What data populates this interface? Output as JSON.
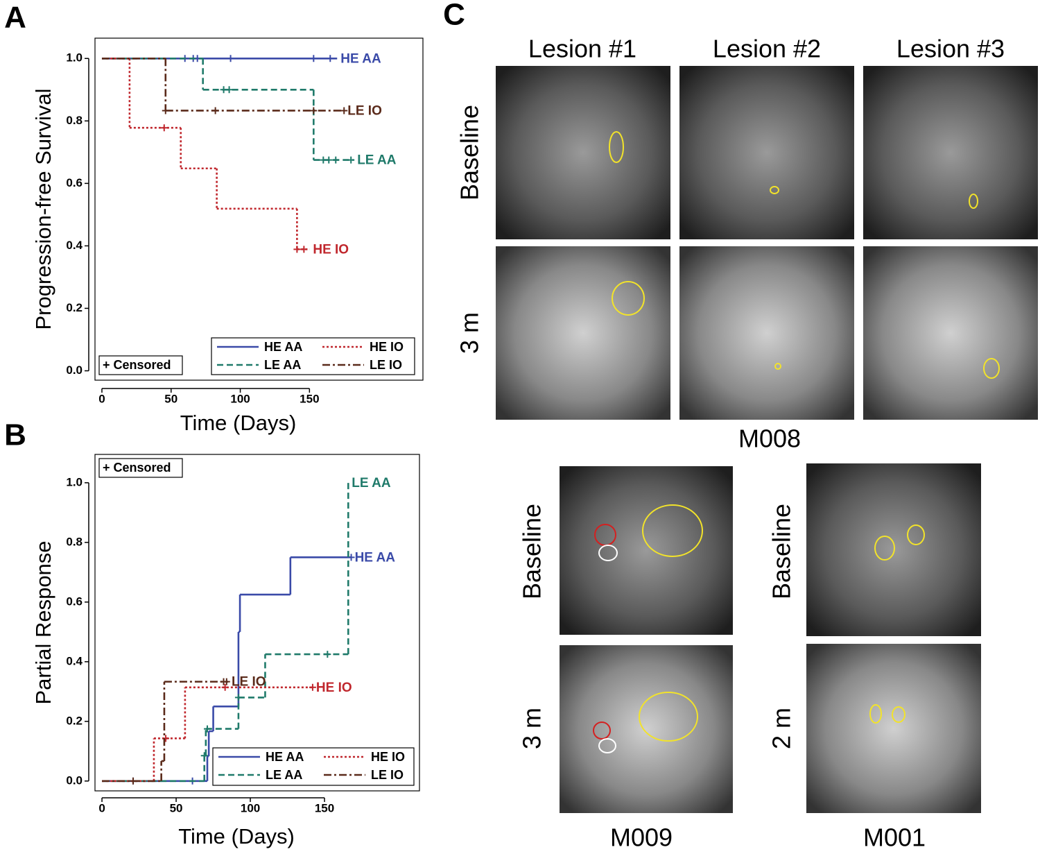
{
  "chart_data": [
    {
      "type": "line",
      "step": true,
      "xlabel": "Time (Days)",
      "ylabel": "Progression-free Survival",
      "xlim": [
        -5,
        232
      ],
      "ylim": [
        -0.03,
        1.065
      ],
      "xticks": [
        0,
        50,
        100,
        150
      ],
      "yticks": [
        {
          "value": 0,
          "label": "0.0"
        },
        {
          "value": 0.2,
          "label": "0.2"
        },
        {
          "value": 0.4,
          "label": "0.4"
        },
        {
          "value": 0.6,
          "label": "0.6"
        },
        {
          "value": 0.8,
          "label": "0.8"
        },
        {
          "value": 1,
          "label": "1.0"
        }
      ],
      "legend_position": "lower right",
      "censor_note": "+ Censored",
      "censor_note_position": "lower left",
      "series": [
        {
          "name": "HE AA",
          "color": "#3a4aa8",
          "dash": "solid",
          "x": [
            0,
            170
          ],
          "values": [
            1,
            1
          ],
          "censored": {
            "x": [
              60,
              66,
              69,
              93,
              153,
              165
            ],
            "values": [
              1,
              1,
              1,
              1,
              1,
              1
            ]
          }
        },
        {
          "name": "LE AA",
          "color": "#1f7a6a",
          "dash": "dashed",
          "x": [
            0,
            73,
            153,
            182
          ],
          "values": [
            1,
            0.9,
            0.675,
            0.675
          ],
          "censored": {
            "x": [
              88,
              92,
              160,
              164,
              169,
              180
            ],
            "values": [
              0.9,
              0.9,
              0.675,
              0.675,
              0.675,
              0.675
            ]
          }
        },
        {
          "name": "HE IO",
          "color": "#c0272d",
          "dash": "dotted",
          "x": [
            0,
            20,
            57,
            83,
            141,
            150
          ],
          "values": [
            1,
            0.778,
            0.648,
            0.519,
            0.389,
            0.389
          ],
          "censored": {
            "x": [
              45,
              141,
              146
            ],
            "values": [
              0.778,
              0.389,
              0.389
            ]
          }
        },
        {
          "name": "LE IO",
          "color": "#5a2a1a",
          "dash": "dashdot",
          "x": [
            0,
            46,
            175
          ],
          "values": [
            1,
            0.833,
            0.833
          ],
          "censored": {
            "x": [
              46,
              82,
              153,
              175
            ],
            "values": [
              0.833,
              0.833,
              0.833,
              0.833
            ]
          }
        }
      ]
    },
    {
      "type": "line",
      "step": true,
      "xlabel": "Time (Days)",
      "ylabel": "Partial Response",
      "xlim": [
        -4.7,
        214
      ],
      "ylim": [
        -0.033,
        1.095
      ],
      "xticks": [
        0,
        50,
        100,
        150
      ],
      "yticks": [
        {
          "value": 0,
          "label": "0.0"
        },
        {
          "value": 0.2,
          "label": "0.2"
        },
        {
          "value": 0.4,
          "label": "0.4"
        },
        {
          "value": 0.6,
          "label": "0.6"
        },
        {
          "value": 0.8,
          "label": "0.8"
        },
        {
          "value": 1,
          "label": "1.0"
        }
      ],
      "legend_position": "lower right",
      "censor_note": "+ Censored",
      "censor_note_position": "upper left",
      "series": [
        {
          "name": "HE AA",
          "color": "#3a4aa8",
          "dash": "solid",
          "x": [
            0,
            71,
            72,
            75,
            92,
            93,
            127,
            168
          ],
          "values": [
            0,
            0.083,
            0.167,
            0.25,
            0.5,
            0.625,
            0.75,
            0.75
          ],
          "censored": {
            "x": [
              21,
              61,
              168
            ],
            "values": [
              0,
              0,
              0.75
            ]
          }
        },
        {
          "name": "LE AA",
          "color": "#1f7a6a",
          "dash": "dashed",
          "x": [
            0,
            69,
            70,
            92,
            110,
            166
          ],
          "values": [
            0,
            0.085,
            0.175,
            0.28,
            0.425,
            1
          ],
          "censored": {
            "x": [
              69,
              71,
              92,
              152
            ],
            "values": [
              0.085,
              0.175,
              0.28,
              0.425
            ]
          }
        },
        {
          "name": "HE IO",
          "color": "#c0272d",
          "dash": "dotted",
          "x": [
            0,
            35,
            56,
            142
          ],
          "values": [
            0,
            0.143,
            0.314,
            0.314
          ],
          "censored": {
            "x": [
              43,
              83,
              142
            ],
            "values": [
              0.143,
              0.314,
              0.314
            ]
          }
        },
        {
          "name": "LE IO",
          "color": "#5a2a1a",
          "dash": "dashdot",
          "x": [
            0,
            40,
            42,
            85
          ],
          "values": [
            0,
            0.067,
            0.333,
            0.333
          ],
          "censored": {
            "x": [
              21,
              82,
              84
            ],
            "values": [
              0,
              0.333,
              0.333
            ]
          }
        }
      ]
    }
  ],
  "figure": {
    "panels": [
      "A",
      "B",
      "C"
    ],
    "imaging": {
      "lesions": [
        "Lesion #1",
        "Lesion #2",
        "Lesion #3"
      ],
      "m008": {
        "rows": [
          "Baseline",
          "3 m"
        ],
        "patient": "M008"
      },
      "m009": {
        "rows": [
          "Baseline",
          "3 m"
        ],
        "patient": "M009"
      },
      "m001": {
        "rows": [
          "Baseline",
          "2 m"
        ],
        "patient": "M001"
      }
    }
  }
}
